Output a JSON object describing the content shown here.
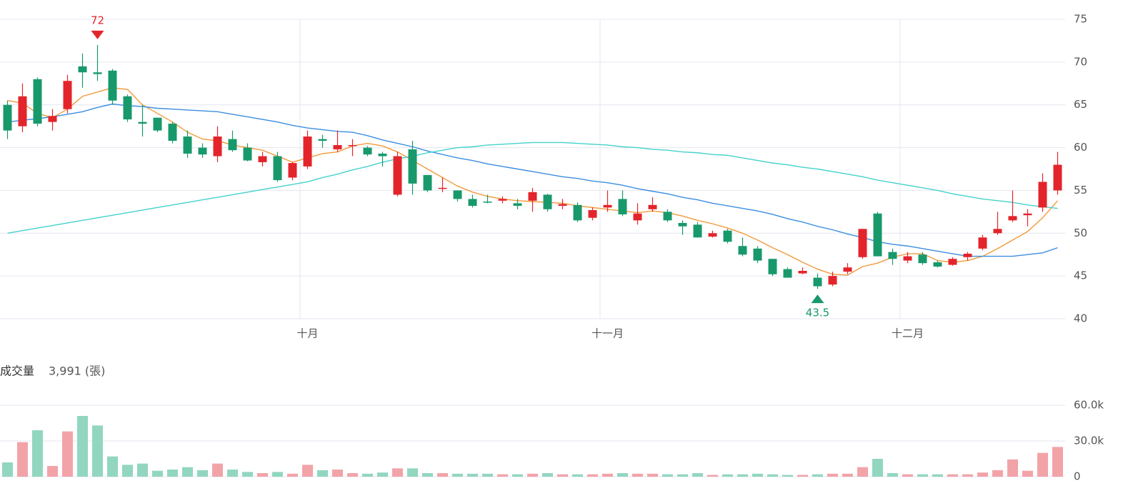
{
  "chart_data": [
    {
      "type": "candlestick",
      "categories": [
        null,
        null,
        null,
        null,
        null,
        null,
        null,
        null,
        null,
        null,
        null,
        null,
        null,
        null,
        null,
        null,
        null,
        null,
        null,
        null,
        "十月",
        null,
        null,
        null,
        null,
        null,
        null,
        null,
        null,
        null,
        null,
        null,
        null,
        null,
        null,
        null,
        null,
        null,
        null,
        null,
        "十一月",
        null,
        null,
        null,
        null,
        null,
        null,
        null,
        null,
        null,
        null,
        null,
        null,
        null,
        null,
        null,
        null,
        null,
        null,
        null,
        "十二月",
        null,
        null,
        null,
        null,
        null,
        null,
        null,
        null,
        null,
        null
      ],
      "open": [
        65,
        62.5,
        68,
        63,
        64.5,
        69.5,
        68.8,
        69,
        66,
        63,
        63.5,
        62.8,
        61.3,
        60,
        59,
        61,
        60,
        58.3,
        59,
        56.5,
        57.8,
        61,
        59.8,
        60.2,
        60,
        59.3,
        54.5,
        59.8,
        56.8,
        55.2,
        55,
        54,
        53.7,
        53.8,
        53.5,
        53.8,
        54.5,
        53.2,
        53.3,
        51.8,
        53,
        54,
        51.5,
        52.8,
        52.5,
        51.2,
        51,
        49.6,
        50.3,
        48.5,
        48.2,
        47,
        45.8,
        45.3,
        44.8,
        44,
        45.5,
        47.2,
        52.3,
        47.8,
        46.8,
        47.5,
        46.6,
        46.3,
        47.2,
        48.2,
        50,
        51.5,
        52.1,
        53,
        55
      ],
      "high": [
        65.5,
        67.5,
        68.2,
        64.5,
        68.5,
        71,
        72,
        69.2,
        66.2,
        65,
        63.5,
        63,
        62,
        60.5,
        62.5,
        62,
        60.5,
        59.5,
        59.5,
        58.3,
        62,
        61.5,
        62,
        61,
        60.2,
        59.5,
        59.5,
        60.8,
        56.8,
        56.5,
        55,
        54.5,
        54.5,
        54.3,
        54,
        55.3,
        54.6,
        54,
        53.6,
        53,
        55,
        55,
        53.5,
        54.2,
        52.8,
        51.5,
        51.3,
        50.3,
        50.5,
        49.5,
        48.5,
        47,
        46,
        46,
        45.3,
        45.5,
        46.5,
        50.5,
        52.5,
        48.2,
        47.8,
        47.8,
        46.8,
        47.2,
        47.8,
        49.8,
        52.5,
        55,
        52.8,
        57,
        59.5
      ],
      "low": [
        61,
        61.8,
        62.5,
        62,
        64,
        67,
        67.8,
        65,
        63,
        61.3,
        61.8,
        60.5,
        58.8,
        58.8,
        58.3,
        59.5,
        58.4,
        57.8,
        56,
        56.2,
        57.5,
        60,
        59.5,
        59,
        59,
        57.8,
        54.3,
        54.5,
        54.8,
        54.8,
        53.7,
        53,
        53.5,
        53.5,
        52.8,
        52.5,
        52.5,
        52.8,
        51.3,
        51.5,
        52.5,
        52,
        51,
        52.5,
        51.3,
        49.8,
        49.5,
        49.5,
        48.8,
        47.3,
        46.5,
        45,
        44.8,
        45.2,
        43.5,
        43.8,
        45.2,
        47,
        47.3,
        46.3,
        46.5,
        46.3,
        46,
        46.2,
        46.8,
        48,
        49.8,
        51.3,
        50.8,
        52.5,
        54.5
      ],
      "close": [
        62,
        66,
        62.8,
        63.7,
        67.8,
        68.8,
        68.6,
        65.5,
        63.3,
        62.8,
        62,
        60.8,
        59.3,
        59.2,
        61.3,
        59.7,
        58.5,
        59,
        56.2,
        58.2,
        61.3,
        60.8,
        60.3,
        60.3,
        59.2,
        59,
        59,
        55.8,
        55,
        55.3,
        54,
        53.2,
        53.6,
        54,
        53.2,
        54.8,
        52.8,
        53.4,
        51.5,
        52.7,
        53.3,
        52.2,
        52.3,
        53.3,
        51.5,
        50.8,
        49.5,
        50,
        49,
        47.5,
        46.8,
        45.2,
        44.8,
        45.6,
        43.8,
        45,
        46,
        50.5,
        47.3,
        47,
        47.3,
        46.5,
        46.1,
        47,
        47.6,
        49.5,
        50.5,
        52,
        52.3,
        56,
        58
      ],
      "up_color": "#e3242b",
      "down_color": "#18996b",
      "lines": [
        {
          "color": "#f39a3a",
          "values": [
            65.5,
            65.2,
            64,
            63.5,
            64.5,
            66,
            66.5,
            67,
            66.8,
            65,
            64,
            63,
            61.8,
            61,
            60.8,
            60.3,
            60,
            59.7,
            59,
            58.3,
            58.8,
            59.3,
            59.5,
            60.2,
            60.5,
            60.2,
            59.5,
            58.5,
            57.5,
            56.5,
            55.5,
            54.8,
            54.3,
            54,
            53.8,
            53.7,
            53.6,
            53.5,
            53.2,
            53,
            52.8,
            52.6,
            52.4,
            52.6,
            52.4,
            52,
            51.5,
            51.1,
            50.6,
            50,
            49.2,
            48.3,
            47.5,
            46.6,
            45.8,
            45.2,
            45.1,
            46.1,
            46.5,
            47.2,
            47.6,
            47.6,
            46.8,
            46.6,
            46.8,
            47.3,
            48.2,
            49.2,
            50.2,
            51.8,
            53.8
          ]
        },
        {
          "color": "#3b8ee0",
          "values": [
            63,
            63.2,
            63.4,
            63.6,
            63.9,
            64.2,
            64.7,
            65.1,
            64.9,
            64.8,
            64.6,
            64.5,
            64.4,
            64.3,
            64.2,
            63.9,
            63.6,
            63.3,
            63,
            62.6,
            62.3,
            62.1,
            61.9,
            61.8,
            61.4,
            60.9,
            60.5,
            60.1,
            59.6,
            59.2,
            58.8,
            58.5,
            58.1,
            57.8,
            57.5,
            57.2,
            56.9,
            56.6,
            56.4,
            56.1,
            55.9,
            55.6,
            55.2,
            54.9,
            54.6,
            54.2,
            53.9,
            53.5,
            53.2,
            52.9,
            52.6,
            52.2,
            51.7,
            51.3,
            50.8,
            50.4,
            49.9,
            49.5,
            49,
            48.7,
            48.5,
            48.2,
            47.9,
            47.6,
            47.3,
            47.3,
            47.3,
            47.3,
            47.5,
            47.7,
            48.3
          ]
        },
        {
          "color": "#45d2cc",
          "values": [
            50,
            50.3,
            50.6,
            50.9,
            51.2,
            51.5,
            51.8,
            52.1,
            52.4,
            52.7,
            53,
            53.3,
            53.6,
            53.9,
            54.2,
            54.5,
            54.8,
            55.1,
            55.4,
            55.7,
            56,
            56.5,
            56.9,
            57.4,
            57.8,
            58.3,
            58.7,
            59,
            59.4,
            59.7,
            60,
            60.1,
            60.3,
            60.4,
            60.5,
            60.6,
            60.6,
            60.6,
            60.5,
            60.4,
            60.3,
            60.1,
            60,
            59.8,
            59.7,
            59.5,
            59.4,
            59.2,
            59.1,
            58.8,
            58.5,
            58.2,
            58,
            57.7,
            57.5,
            57.2,
            56.9,
            56.6,
            56.2,
            55.9,
            55.6,
            55.3,
            55,
            54.6,
            54.3,
            54,
            53.8,
            53.6,
            53.3,
            53.1,
            52.9
          ]
        }
      ],
      "high_label": "72",
      "low_label": "43.5",
      "ylim": [
        40,
        75
      ],
      "yticks": [
        40,
        45,
        50,
        55,
        60,
        65,
        70,
        75
      ],
      "grid": true
    },
    {
      "type": "bar",
      "title": "成交量",
      "subtitle": "3,991 (張)",
      "values": [
        12000,
        29000,
        39000,
        9000,
        38000,
        51000,
        43000,
        17000,
        10000,
        11000,
        5000,
        6000,
        8000,
        5500,
        11000,
        6000,
        4000,
        3000,
        4000,
        2500,
        10000,
        5500,
        6000,
        3000,
        2500,
        3500,
        7000,
        7000,
        3000,
        3000,
        2500,
        2500,
        2500,
        2000,
        2000,
        2500,
        3000,
        2000,
        2000,
        2000,
        2500,
        3000,
        2500,
        2500,
        2000,
        2000,
        3000,
        1500,
        2000,
        2000,
        2500,
        2000,
        1500,
        1500,
        2000,
        2500,
        2500,
        8000,
        15000,
        3000,
        2000,
        2000,
        2000,
        2000,
        2000,
        3500,
        5500,
        14500,
        5000,
        20000,
        25000
      ],
      "up_color": "#f2a3a8",
      "down_color": "#92d6c0",
      "ylim": [
        0,
        60000
      ],
      "yticks": [
        0,
        {
          "value": 30000,
          "label": "30.0k"
        },
        {
          "value": 60000,
          "label": "60.0k"
        }
      ],
      "grid": true
    }
  ]
}
